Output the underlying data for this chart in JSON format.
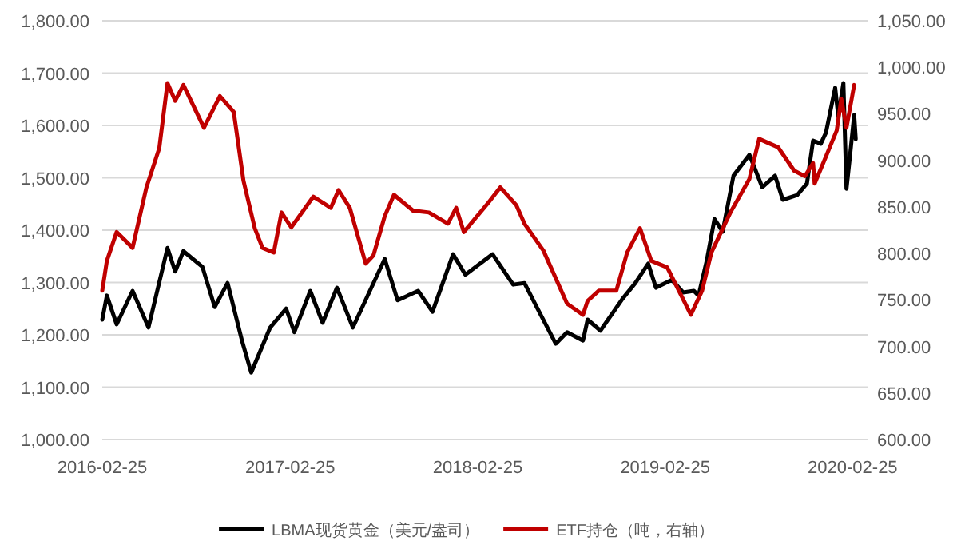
{
  "chart_data": {
    "type": "line",
    "xlim": [
      "2016-02-25",
      "2020-03-25"
    ],
    "xticks": [
      "2016-02-25",
      "2017-02-25",
      "2018-02-25",
      "2019-02-25",
      "2020-02-25"
    ],
    "ylim": [
      1000,
      1800
    ],
    "yticks": [
      {
        "value": 1000,
        "label": "1,000.00"
      },
      {
        "value": 1100,
        "label": "1,100.00"
      },
      {
        "value": 1200,
        "label": "1,200.00"
      },
      {
        "value": 1300,
        "label": "1,300.00"
      },
      {
        "value": 1400,
        "label": "1,400.00"
      },
      {
        "value": 1500,
        "label": "1,500.00"
      },
      {
        "value": 1600,
        "label": "1,600.00"
      },
      {
        "value": 1700,
        "label": "1,700.00"
      },
      {
        "value": 1800,
        "label": "1,800.00"
      }
    ],
    "y2lim": [
      600,
      1050
    ],
    "y2ticks": [
      {
        "value": 600,
        "label": "600.00"
      },
      {
        "value": 650,
        "label": "650.00"
      },
      {
        "value": 700,
        "label": "700.00"
      },
      {
        "value": 750,
        "label": "750.00"
      },
      {
        "value": 800,
        "label": "800.00"
      },
      {
        "value": 850,
        "label": "850.00"
      },
      {
        "value": 900,
        "label": "900.00"
      },
      {
        "value": 950,
        "label": "950.00"
      },
      {
        "value": 1000,
        "label": "1,000.00"
      },
      {
        "value": 1050,
        "label": "1,050.00"
      }
    ],
    "grid": "y",
    "legend": "bottom",
    "series": [
      {
        "name": "LBMA现货黄金（美元/盎司）",
        "color": "#000000",
        "x": [
          "2016-02-25",
          "2016-03-05",
          "2016-03-24",
          "2016-04-24",
          "2016-05-25",
          "2016-07-01",
          "2016-07-16",
          "2016-08-01",
          "2016-09-07",
          "2016-10-01",
          "2016-10-26",
          "2016-11-23",
          "2016-12-11",
          "2017-01-17",
          "2017-02-17",
          "2017-03-05",
          "2017-04-05",
          "2017-04-29",
          "2017-05-27",
          "2017-06-27",
          "2017-08-28",
          "2017-09-22",
          "2017-11-01",
          "2017-11-29",
          "2018-01-08",
          "2018-02-01",
          "2018-03-26",
          "2018-05-05",
          "2018-05-27",
          "2018-06-20",
          "2018-07-27",
          "2018-08-18",
          "2018-09-18",
          "2018-09-27",
          "2018-10-22",
          "2018-12-04",
          "2018-12-29",
          "2019-01-23",
          "2019-02-07",
          "2019-03-10",
          "2019-04-01",
          "2019-04-22",
          "2019-05-01",
          "2019-05-17",
          "2019-06-01",
          "2019-06-17",
          "2019-07-08",
          "2019-08-08",
          "2019-09-02",
          "2019-09-27",
          "2019-10-12",
          "2019-11-09",
          "2019-11-28",
          "2019-12-10",
          "2019-12-25",
          "2020-01-04",
          "2020-01-22",
          "2020-01-28",
          "2020-02-07",
          "2020-02-13",
          "2020-02-19",
          "2020-02-28",
          "2020-03-02"
        ],
        "values": [
          1229,
          1275,
          1220,
          1284,
          1214,
          1366,
          1321,
          1360,
          1330,
          1253,
          1299,
          1189,
          1128,
          1214,
          1250,
          1205,
          1284,
          1223,
          1290,
          1214,
          1345,
          1266,
          1284,
          1244,
          1354,
          1315,
          1354,
          1296,
          1299,
          1253,
          1183,
          1205,
          1189,
          1229,
          1208,
          1269,
          1299,
          1336,
          1290,
          1305,
          1281,
          1284,
          1275,
          1342,
          1421,
          1397,
          1504,
          1544,
          1482,
          1504,
          1458,
          1467,
          1489,
          1571,
          1565,
          1586,
          1672,
          1617,
          1681,
          1479,
          1534,
          1620,
          1574
        ]
      },
      {
        "name": "ETF持仓（吨，右轴）",
        "color": "#c00000",
        "axis": "y2",
        "x": [
          "2016-02-25",
          "2016-03-05",
          "2016-03-24",
          "2016-04-24",
          "2016-05-21",
          "2016-06-15",
          "2016-07-01",
          "2016-07-16",
          "2016-08-01",
          "2016-09-10",
          "2016-10-11",
          "2016-11-07",
          "2016-11-26",
          "2016-12-18",
          "2017-01-02",
          "2017-01-24",
          "2017-02-08",
          "2017-02-27",
          "2017-04-11",
          "2017-05-15",
          "2017-05-30",
          "2017-06-21",
          "2017-07-22",
          "2017-08-06",
          "2017-08-28",
          "2017-09-15",
          "2017-10-22",
          "2017-11-22",
          "2017-12-29",
          "2018-01-14",
          "2018-01-29",
          "2018-03-17",
          "2018-04-10",
          "2018-05-11",
          "2018-05-27",
          "2018-07-03",
          "2018-08-18",
          "2018-09-18",
          "2018-09-27",
          "2018-10-19",
          "2018-11-22",
          "2018-12-13",
          "2019-01-07",
          "2019-01-29",
          "2019-03-01",
          "2019-04-16",
          "2019-05-08",
          "2019-05-26",
          "2019-07-02",
          "2019-08-08",
          "2019-08-27",
          "2019-10-03",
          "2019-11-03",
          "2019-11-24",
          "2019-12-10",
          "2019-12-13",
          "2020-01-04",
          "2020-01-25",
          "2020-02-03",
          "2020-02-13",
          "2020-02-28"
        ],
        "values": [
          760,
          792,
          823,
          806,
          871,
          913,
          983,
          964,
          981,
          935,
          969,
          952,
          878,
          827,
          806,
          801,
          844,
          828,
          861,
          849,
          868,
          849,
          789,
          798,
          840,
          863,
          846,
          844,
          832,
          849,
          823,
          854,
          871,
          852,
          832,
          803,
          746,
          734,
          749,
          760,
          760,
          801,
          827,
          792,
          785,
          734,
          760,
          801,
          844,
          880,
          923,
          914,
          889,
          883,
          897,
          875,
          904,
          932,
          966,
          935,
          981
        ]
      }
    ]
  }
}
